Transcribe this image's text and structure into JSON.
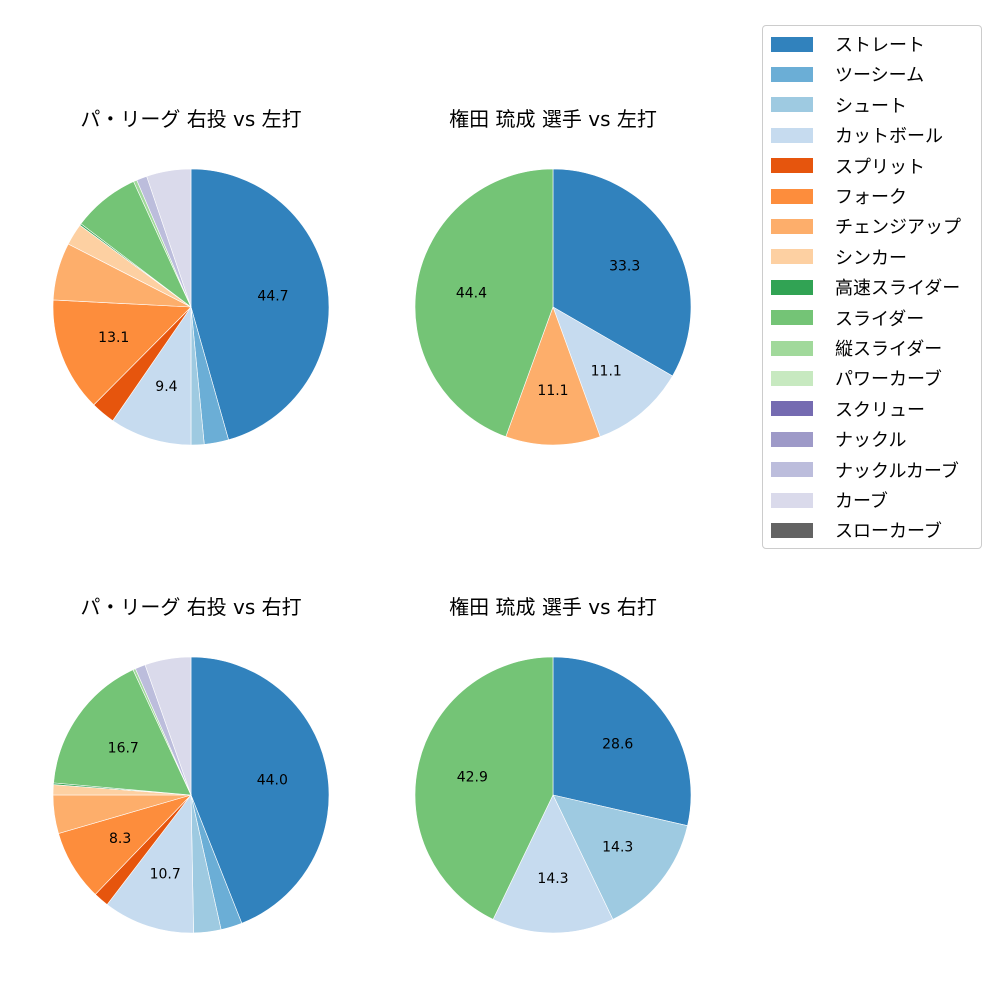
{
  "chart_data": [
    {
      "type": "pie",
      "title": "パ・リーグ 右投 vs 左打",
      "categories": [
        "ストレート",
        "ツーシーム",
        "シュート",
        "カットボール",
        "スプリット",
        "フォーク",
        "チェンジアップ",
        "シンカー",
        "高速スライダー",
        "スライダー",
        "縦スライダー",
        "パワーカーブ",
        "スクリュー",
        "ナックル",
        "ナックルカーブ",
        "カーブ",
        "スローカーブ"
      ],
      "values": [
        44.7,
        2.8,
        1.5,
        9.4,
        2.8,
        13.1,
        6.6,
        2.5,
        0.2,
        7.7,
        0.4,
        0.0,
        0.0,
        0.0,
        1.2,
        5.1,
        0.0
      ],
      "labels_shown": {
        "ストレート": "44.7",
        "カットボール": "9.4",
        "フォーク": "13.1"
      }
    },
    {
      "type": "pie",
      "title": "権田 琉成 選手 vs 左打",
      "categories": [
        "ストレート",
        "カットボール",
        "チェンジアップ",
        "スライダー"
      ],
      "values": [
        33.3,
        11.1,
        11.1,
        44.4
      ],
      "labels_shown": {
        "ストレート": "33.3",
        "カットボール": "11.1",
        "チェンジアップ": "11.1",
        "スライダー": "44.4"
      }
    },
    {
      "type": "pie",
      "title": "パ・リーグ 右投 vs 右打",
      "categories": [
        "ストレート",
        "ツーシーム",
        "シュート",
        "カットボール",
        "スプリット",
        "フォーク",
        "チェンジアップ",
        "シンカー",
        "高速スライダー",
        "スライダー",
        "縦スライダー",
        "パワーカーブ",
        "スクリュー",
        "ナックル",
        "ナックルカーブ",
        "カーブ",
        "スローカーブ"
      ],
      "values": [
        44.0,
        2.5,
        3.2,
        10.7,
        1.8,
        8.3,
        4.5,
        1.2,
        0.2,
        16.7,
        0.3,
        0.0,
        0.0,
        0.0,
        1.2,
        5.4,
        0.0
      ],
      "labels_shown": {
        "ストレート": "44.0",
        "カットボール": "10.7",
        "フォーク": "8.3",
        "スライダー": "16.7"
      }
    },
    {
      "type": "pie",
      "title": "権田 琉成 選手 vs 右打",
      "categories": [
        "ストレート",
        "シュート",
        "カットボール",
        "スライダー"
      ],
      "values": [
        28.6,
        14.3,
        14.3,
        42.9
      ],
      "labels_shown": {
        "ストレート": "28.6",
        "シュート": "14.3",
        "カットボール": "14.3",
        "スライダー": "42.9"
      }
    }
  ],
  "titles": {
    "top_left": "パ・リーグ 右投 vs 左打",
    "top_right": "権田 琉成 選手 vs 左打",
    "bottom_left": "パ・リーグ 右投 vs 右打",
    "bottom_right": "権田 琉成 選手 vs 右打"
  },
  "legend": [
    {
      "label": "ストレート",
      "color": "#3182bd"
    },
    {
      "label": "ツーシーム",
      "color": "#6baed6"
    },
    {
      "label": "シュート",
      "color": "#9ecae1"
    },
    {
      "label": "カットボール",
      "color": "#c6dbef"
    },
    {
      "label": "スプリット",
      "color": "#e6550d"
    },
    {
      "label": "フォーク",
      "color": "#fd8d3c"
    },
    {
      "label": "チェンジアップ",
      "color": "#fdae6b"
    },
    {
      "label": "シンカー",
      "color": "#fdd0a2"
    },
    {
      "label": "高速スライダー",
      "color": "#31a354"
    },
    {
      "label": "スライダー",
      "color": "#74c476"
    },
    {
      "label": "縦スライダー",
      "color": "#a1d99b"
    },
    {
      "label": "パワーカーブ",
      "color": "#c7e9c0"
    },
    {
      "label": "スクリュー",
      "color": "#756bb1"
    },
    {
      "label": "ナックル",
      "color": "#9e9ac8"
    },
    {
      "label": "ナックルカーブ",
      "color": "#bcbddc"
    },
    {
      "label": "カーブ",
      "color": "#dadaeb"
    },
    {
      "label": "スローカーブ",
      "color": "#636363"
    }
  ]
}
